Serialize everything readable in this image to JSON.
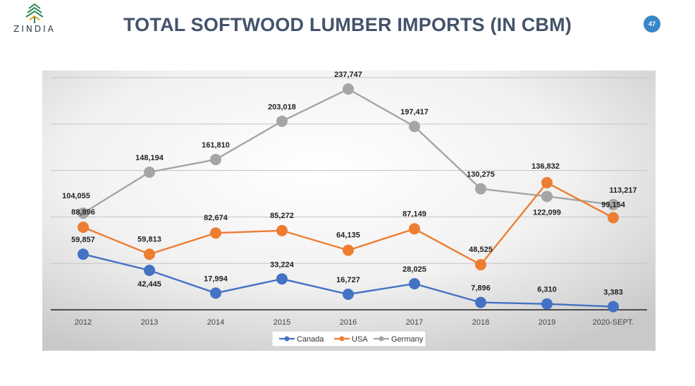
{
  "brand": {
    "name": "ZINDIA"
  },
  "slide": {
    "title": "TOTAL SOFTWOOD LUMBER IMPORTS (IN CBM)",
    "page_number": "47"
  },
  "colors": {
    "canada": "#4472c4",
    "usa": "#ed7d31",
    "germany": "#a5a5a5",
    "title": "#44536a",
    "badge": "#3a86c8"
  },
  "chart_data": {
    "type": "line",
    "title": "",
    "categories": [
      "2012",
      "2013",
      "2014",
      "2015",
      "2016",
      "2017",
      "2018",
      "2019",
      "2020-SEPT."
    ],
    "series": [
      {
        "name": "Canada",
        "values": [
          59857,
          42445,
          17994,
          33224,
          16727,
          28025,
          7896,
          6310,
          3383
        ],
        "labels": [
          "59,857",
          "42,445",
          "17,994",
          "33,224",
          "16,727",
          "28,025",
          "7,896",
          "6,310",
          "3,383"
        ]
      },
      {
        "name": "USA",
        "values": [
          88896,
          59813,
          82674,
          85272,
          64135,
          87149,
          48525,
          136832,
          99154
        ],
        "labels": [
          "88,896",
          "59,813",
          "82,674",
          "85,272",
          "64,135",
          "87,149",
          "48,525",
          "136,832",
          "99,154"
        ]
      },
      {
        "name": "Germany",
        "values": [
          104055,
          148194,
          161810,
          203018,
          237747,
          197417,
          130275,
          122099,
          113217
        ],
        "labels": [
          "104,055",
          "148,194",
          "161,810",
          "203,018",
          "237,747",
          "197,417",
          "130,275",
          "122,099",
          "113,217"
        ]
      }
    ],
    "ylim": [
      0,
      250000
    ],
    "grid": true,
    "legend": "bottom"
  }
}
